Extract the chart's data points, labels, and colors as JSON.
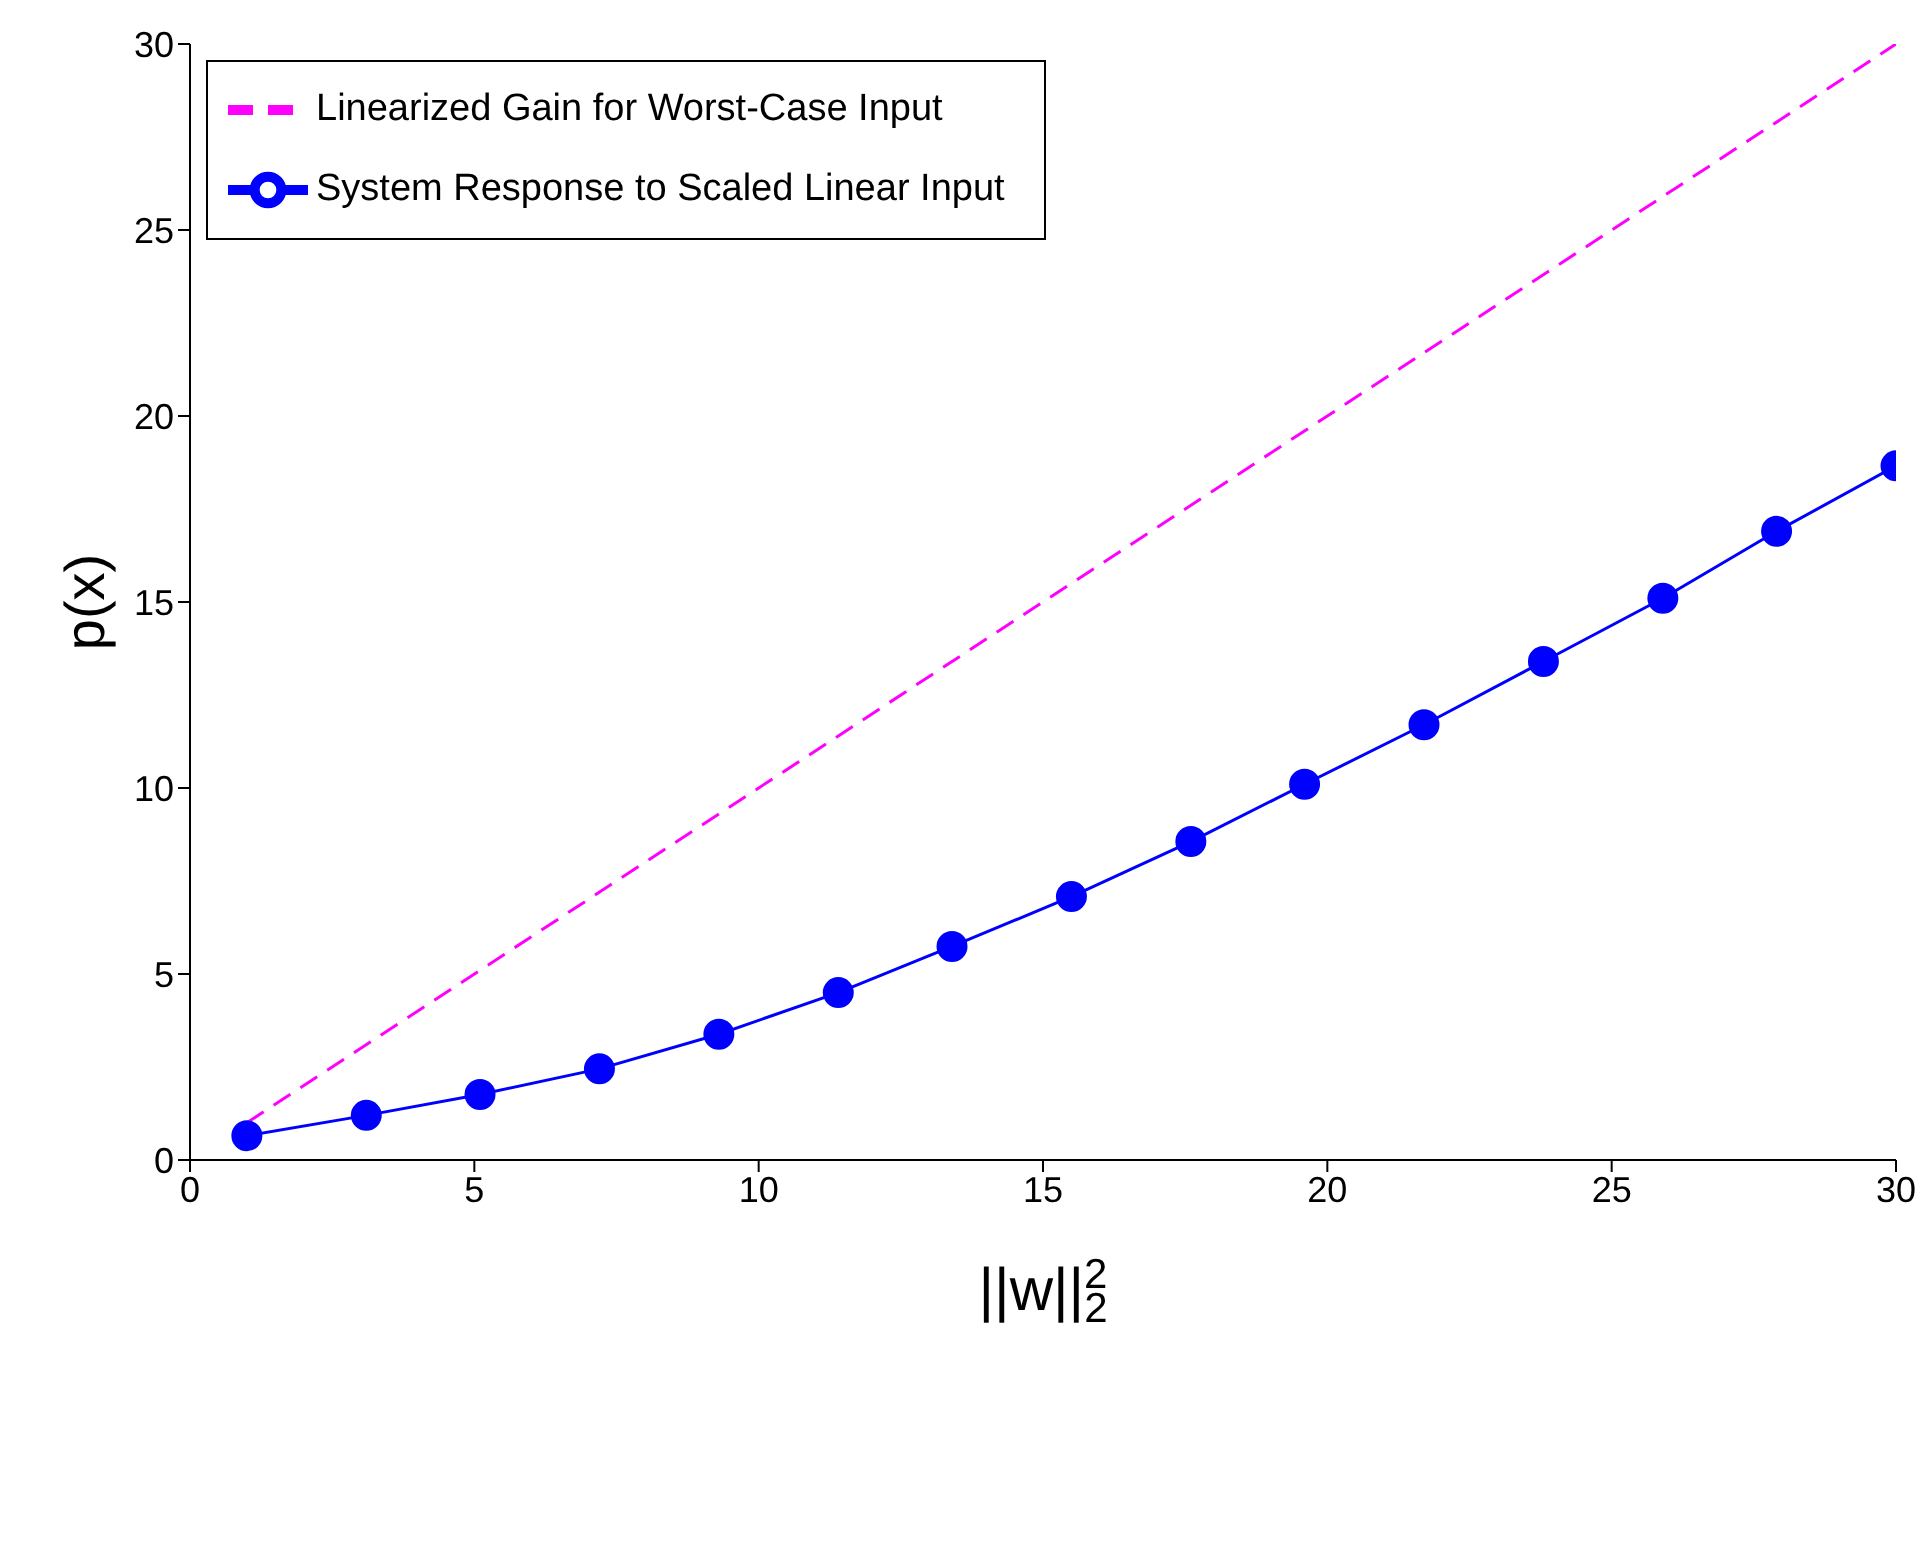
{
  "chart_data": {
    "type": "line",
    "xlabel": "||w||$_{2}$$^{2}$",
    "ylabel": "p(x)",
    "xlim": [
      0,
      30
    ],
    "xticks": [
      0,
      5,
      10,
      15,
      20,
      25,
      30
    ],
    "ylim": [
      0,
      30
    ],
    "yticks": [
      0,
      5,
      10,
      15,
      20,
      25,
      30
    ],
    "grid": false,
    "legend": "top left",
    "series": [
      {
        "name": "System Response to Scaled Linear Input",
        "color": "#0000ff",
        "marker": "circle",
        "line_style": "solid",
        "x": [
          1,
          3.1,
          5.1,
          7.2,
          9.3,
          11.4,
          13.4,
          15.5,
          17.6,
          19.6,
          21.7,
          23.8,
          25.9,
          27.9,
          30
        ],
        "values": [
          0.65,
          1.2,
          1.76,
          2.45,
          3.38,
          4.5,
          5.74,
          7.08,
          8.56,
          10.1,
          11.7,
          13.4,
          15.1,
          16.9,
          18.66
        ]
      },
      {
        "name": "Linearized Gain for Worst-Case Input",
        "color": "#ff00ff",
        "marker": "none",
        "line_style": "dashed",
        "x": [
          1,
          30
        ],
        "values": [
          1,
          30
        ]
      }
    ]
  }
}
